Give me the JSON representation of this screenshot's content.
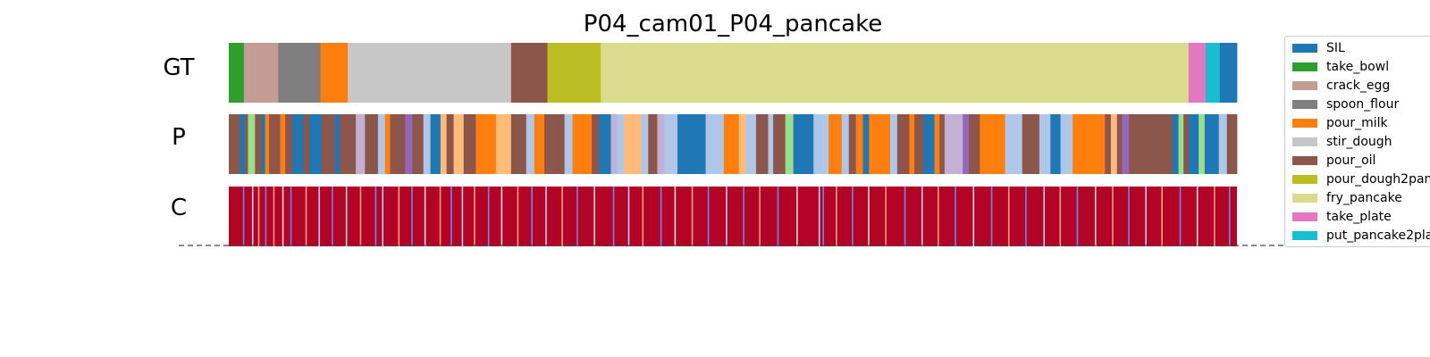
{
  "chart_data": {
    "type": "heatmap",
    "title": "P04_cam01_P04_pancake",
    "rows": [
      "GT",
      "P",
      "C"
    ],
    "legend": {
      "placement": "right",
      "entries": [
        {
          "label": "SIL",
          "color": "#1f77b4"
        },
        {
          "label": "take_bowl",
          "color": "#2ca02c"
        },
        {
          "label": "crack_egg",
          "color": "#c49c94"
        },
        {
          "label": "spoon_flour",
          "color": "#7f7f7f"
        },
        {
          "label": "pour_milk",
          "color": "#ff7f0e"
        },
        {
          "label": "stir_dough",
          "color": "#c7c7c7"
        },
        {
          "label": "pour_oil",
          "color": "#8c564b"
        },
        {
          "label": "pour_dough2pan",
          "color": "#bcbd22"
        },
        {
          "label": "fry_pancake",
          "color": "#dbdb8d"
        },
        {
          "label": "take_plate",
          "color": "#e377c2"
        },
        {
          "label": "put_pancake2pla",
          "color": "#17becf"
        }
      ]
    },
    "gt_segments": [
      {
        "action": "take_bowl",
        "start": 0.0,
        "end": 1.5
      },
      {
        "action": "crack_egg",
        "start": 1.5,
        "end": 4.9
      },
      {
        "action": "spoon_flour",
        "start": 4.9,
        "end": 9.1
      },
      {
        "action": "pour_milk",
        "start": 9.1,
        "end": 11.8
      },
      {
        "action": "stir_dough",
        "start": 11.8,
        "end": 28.0
      },
      {
        "action": "pour_oil",
        "start": 28.0,
        "end": 31.6
      },
      {
        "action": "pour_dough2pan",
        "start": 31.6,
        "end": 36.9
      },
      {
        "action": "fry_pancake",
        "start": 36.9,
        "end": 95.2
      },
      {
        "action": "take_plate",
        "start": 95.2,
        "end": 96.9
      },
      {
        "action": "put_pancake2pla",
        "start": 96.9,
        "end": 98.3
      },
      {
        "action": "SIL",
        "start": 98.3,
        "end": 100.0
      }
    ],
    "p_segments": [
      {
        "color": "#8c564b",
        "start": 0.0,
        "end": 1.1
      },
      {
        "color": "#1f77b4",
        "start": 1.1,
        "end": 1.6
      },
      {
        "color": "#8c564b",
        "start": 1.6,
        "end": 1.9
      },
      {
        "color": "#98df8a",
        "start": 1.9,
        "end": 2.6
      },
      {
        "color": "#8c564b",
        "start": 2.6,
        "end": 3.2
      },
      {
        "color": "#1f77b4",
        "start": 3.2,
        "end": 3.6
      },
      {
        "color": "#ff7f0e",
        "start": 3.6,
        "end": 4.0
      },
      {
        "color": "#8c564b",
        "start": 4.0,
        "end": 5.1
      },
      {
        "color": "#ff7f0e",
        "start": 5.1,
        "end": 5.6
      },
      {
        "color": "#8c564b",
        "start": 5.6,
        "end": 6.3
      },
      {
        "color": "#1f77b4",
        "start": 6.3,
        "end": 7.4
      },
      {
        "color": "#8c564b",
        "start": 7.4,
        "end": 8.0
      },
      {
        "color": "#1f77b4",
        "start": 8.0,
        "end": 9.2
      },
      {
        "color": "#8c564b",
        "start": 9.2,
        "end": 10.5
      },
      {
        "color": "#1f77b4",
        "start": 10.5,
        "end": 11.0
      },
      {
        "color": "#8c564b",
        "start": 11.0,
        "end": 12.6
      },
      {
        "color": "#c5b0d5",
        "start": 12.6,
        "end": 13.5
      },
      {
        "color": "#8c564b",
        "start": 13.5,
        "end": 14.8
      },
      {
        "color": "#aec7e8",
        "start": 14.8,
        "end": 15.5
      },
      {
        "color": "#ff7f0e",
        "start": 15.5,
        "end": 16.0
      },
      {
        "color": "#8c564b",
        "start": 16.0,
        "end": 17.5
      },
      {
        "color": "#9467bd",
        "start": 17.5,
        "end": 18.2
      },
      {
        "color": "#8c564b",
        "start": 18.2,
        "end": 19.3
      },
      {
        "color": "#aec7e8",
        "start": 19.3,
        "end": 20.0
      },
      {
        "color": "#1f77b4",
        "start": 20.0,
        "end": 21.0
      },
      {
        "color": "#ffbb78",
        "start": 21.0,
        "end": 21.6
      },
      {
        "color": "#8c564b",
        "start": 21.6,
        "end": 22.3
      },
      {
        "color": "#ffbb78",
        "start": 22.3,
        "end": 23.3
      },
      {
        "color": "#8c564b",
        "start": 23.3,
        "end": 24.5
      },
      {
        "color": "#ff7f0e",
        "start": 24.5,
        "end": 26.5
      },
      {
        "color": "#ffbb78",
        "start": 26.5,
        "end": 28.0
      },
      {
        "color": "#8c564b",
        "start": 28.0,
        "end": 29.5
      },
      {
        "color": "#aec7e8",
        "start": 29.5,
        "end": 30.3
      },
      {
        "color": "#ff7f0e",
        "start": 30.3,
        "end": 31.3
      },
      {
        "color": "#8c564b",
        "start": 31.3,
        "end": 33.3
      },
      {
        "color": "#aec7e8",
        "start": 33.3,
        "end": 34.1
      },
      {
        "color": "#ff7f0e",
        "start": 34.1,
        "end": 36.0
      },
      {
        "color": "#8c564b",
        "start": 36.0,
        "end": 36.7
      },
      {
        "color": "#1f77b4",
        "start": 36.7,
        "end": 37.9
      },
      {
        "color": "#c5b0d5",
        "start": 37.9,
        "end": 38.5
      },
      {
        "color": "#aec7e8",
        "start": 38.5,
        "end": 39.2
      },
      {
        "color": "#ffbb78",
        "start": 39.2,
        "end": 40.9
      },
      {
        "color": "#aec7e8",
        "start": 40.9,
        "end": 41.6
      },
      {
        "color": "#8c564b",
        "start": 41.6,
        "end": 42.5
      },
      {
        "color": "#c5b0d5",
        "start": 42.5,
        "end": 43.2
      },
      {
        "color": "#aec7e8",
        "start": 43.2,
        "end": 44.5
      },
      {
        "color": "#1f77b4",
        "start": 44.5,
        "end": 47.3
      },
      {
        "color": "#aec7e8",
        "start": 47.3,
        "end": 49.1
      },
      {
        "color": "#ff7f0e",
        "start": 49.1,
        "end": 50.6
      },
      {
        "color": "#ffbb78",
        "start": 50.6,
        "end": 51.3
      },
      {
        "color": "#aec7e8",
        "start": 51.3,
        "end": 52.3
      },
      {
        "color": "#8c564b",
        "start": 52.3,
        "end": 53.5
      },
      {
        "color": "#aec7e8",
        "start": 53.5,
        "end": 54.0
      },
      {
        "color": "#8c564b",
        "start": 54.0,
        "end": 55.2
      },
      {
        "color": "#98df8a",
        "start": 55.2,
        "end": 56.0
      },
      {
        "color": "#1f77b4",
        "start": 56.0,
        "end": 58.0
      },
      {
        "color": "#aec7e8",
        "start": 58.0,
        "end": 59.5
      },
      {
        "color": "#ff7f0e",
        "start": 59.5,
        "end": 60.8
      },
      {
        "color": "#aec7e8",
        "start": 60.8,
        "end": 61.5
      },
      {
        "color": "#8c564b",
        "start": 61.5,
        "end": 62.2
      },
      {
        "color": "#ff7f0e",
        "start": 62.2,
        "end": 62.9
      },
      {
        "color": "#1f77b4",
        "start": 62.9,
        "end": 63.5
      },
      {
        "color": "#ff7f0e",
        "start": 63.5,
        "end": 65.6
      },
      {
        "color": "#aec7e8",
        "start": 65.6,
        "end": 66.3
      },
      {
        "color": "#8c564b",
        "start": 66.3,
        "end": 67.5
      },
      {
        "color": "#ff7f0e",
        "start": 67.5,
        "end": 68.0
      },
      {
        "color": "#8c564b",
        "start": 68.0,
        "end": 68.9
      },
      {
        "color": "#1f77b4",
        "start": 68.9,
        "end": 70.0
      },
      {
        "color": "#ff7f0e",
        "start": 70.0,
        "end": 70.5
      },
      {
        "color": "#8c564b",
        "start": 70.5,
        "end": 71.0
      },
      {
        "color": "#c5b0d5",
        "start": 71.0,
        "end": 72.8
      },
      {
        "color": "#9467bd",
        "start": 72.8,
        "end": 73.4
      },
      {
        "color": "#8c564b",
        "start": 73.4,
        "end": 74.5
      },
      {
        "color": "#ff7f0e",
        "start": 74.5,
        "end": 77.0
      },
      {
        "color": "#aec7e8",
        "start": 77.0,
        "end": 78.7
      },
      {
        "color": "#8c564b",
        "start": 78.7,
        "end": 80.4
      },
      {
        "color": "#aec7e8",
        "start": 80.4,
        "end": 81.5
      },
      {
        "color": "#1f77b4",
        "start": 81.5,
        "end": 82.5
      },
      {
        "color": "#aec7e8",
        "start": 82.5,
        "end": 83.7
      },
      {
        "color": "#ff7f0e",
        "start": 83.7,
        "end": 86.9
      },
      {
        "color": "#8c564b",
        "start": 86.9,
        "end": 87.5
      },
      {
        "color": "#ffbb78",
        "start": 87.5,
        "end": 88.1
      },
      {
        "color": "#8c564b",
        "start": 88.1,
        "end": 88.6
      },
      {
        "color": "#9467bd",
        "start": 88.6,
        "end": 89.3
      },
      {
        "color": "#8c564b",
        "start": 89.3,
        "end": 93.6
      },
      {
        "color": "#1f77b4",
        "start": 93.6,
        "end": 94.2
      },
      {
        "color": "#98df8a",
        "start": 94.2,
        "end": 94.7
      },
      {
        "color": "#8c564b",
        "start": 94.7,
        "end": 95.2
      },
      {
        "color": "#1f77b4",
        "start": 95.2,
        "end": 96.2
      },
      {
        "color": "#98df8a",
        "start": 96.2,
        "end": 96.8
      },
      {
        "color": "#1f77b4",
        "start": 96.8,
        "end": 98.2
      },
      {
        "color": "#aec7e8",
        "start": 98.2,
        "end": 99.0
      },
      {
        "color": "#8c564b",
        "start": 99.0,
        "end": 100.0
      }
    ],
    "c_base_color": "#b40426",
    "c_marks": [
      {
        "pos": 1.4,
        "color": "#6788ee"
      },
      {
        "pos": 2.3,
        "color": "#b8cff8"
      },
      {
        "pos": 2.9,
        "color": "#f6a385"
      },
      {
        "pos": 3.6,
        "color": "#6788ee"
      },
      {
        "pos": 4.4,
        "color": "#f4987a"
      },
      {
        "pos": 5.3,
        "color": "#dddcdc"
      },
      {
        "pos": 6.1,
        "color": "#6788ee"
      },
      {
        "pos": 7.6,
        "color": "#f6a385"
      },
      {
        "pos": 8.9,
        "color": "#b8cff8"
      },
      {
        "pos": 10.2,
        "color": "#6788ee"
      },
      {
        "pos": 11.6,
        "color": "#dddcdc"
      },
      {
        "pos": 13.0,
        "color": "#f4987a"
      },
      {
        "pos": 14.5,
        "color": "#6788ee"
      },
      {
        "pos": 15.2,
        "color": "#b8cff8"
      },
      {
        "pos": 16.8,
        "color": "#f6a385"
      },
      {
        "pos": 18.1,
        "color": "#6788ee"
      },
      {
        "pos": 19.4,
        "color": "#dddcdc"
      },
      {
        "pos": 20.9,
        "color": "#f4987a"
      },
      {
        "pos": 22.0,
        "color": "#6788ee"
      },
      {
        "pos": 23.1,
        "color": "#b8cff8"
      },
      {
        "pos": 24.3,
        "color": "#f6a385"
      },
      {
        "pos": 25.7,
        "color": "#6788ee"
      },
      {
        "pos": 27.0,
        "color": "#dddcdc"
      },
      {
        "pos": 28.6,
        "color": "#f4987a"
      },
      {
        "pos": 30.0,
        "color": "#6788ee"
      },
      {
        "pos": 31.4,
        "color": "#b8cff8"
      },
      {
        "pos": 33.0,
        "color": "#f6a385"
      },
      {
        "pos": 34.5,
        "color": "#6788ee"
      },
      {
        "pos": 36.2,
        "color": "#dddcdc"
      },
      {
        "pos": 38.1,
        "color": "#6788ee"
      },
      {
        "pos": 39.6,
        "color": "#b8cff8"
      },
      {
        "pos": 41.0,
        "color": "#f4987a"
      },
      {
        "pos": 42.8,
        "color": "#6788ee"
      },
      {
        "pos": 44.2,
        "color": "#dddcdc"
      },
      {
        "pos": 45.9,
        "color": "#f6a385"
      },
      {
        "pos": 47.5,
        "color": "#6788ee"
      },
      {
        "pos": 49.3,
        "color": "#b8cff8"
      },
      {
        "pos": 51.0,
        "color": "#6788ee"
      },
      {
        "pos": 52.6,
        "color": "#f4987a"
      },
      {
        "pos": 54.4,
        "color": "#6788ee"
      },
      {
        "pos": 56.3,
        "color": "#dddcdc"
      },
      {
        "pos": 58.5,
        "color": "#b8cff8"
      },
      {
        "pos": 58.9,
        "color": "#6788ee"
      },
      {
        "pos": 60.2,
        "color": "#f6a385"
      },
      {
        "pos": 61.8,
        "color": "#6788ee"
      },
      {
        "pos": 63.4,
        "color": "#dddcdc"
      },
      {
        "pos": 65.1,
        "color": "#f4987a"
      },
      {
        "pos": 67.0,
        "color": "#6788ee"
      },
      {
        "pos": 68.7,
        "color": "#b8cff8"
      },
      {
        "pos": 70.3,
        "color": "#f6a385"
      },
      {
        "pos": 72.0,
        "color": "#6788ee"
      },
      {
        "pos": 73.8,
        "color": "#dddcdc"
      },
      {
        "pos": 75.6,
        "color": "#6788ee"
      },
      {
        "pos": 77.3,
        "color": "#f4987a"
      },
      {
        "pos": 79.0,
        "color": "#6788ee"
      },
      {
        "pos": 80.8,
        "color": "#b8cff8"
      },
      {
        "pos": 82.4,
        "color": "#f6a385"
      },
      {
        "pos": 84.1,
        "color": "#6788ee"
      },
      {
        "pos": 85.9,
        "color": "#dddcdc"
      },
      {
        "pos": 87.6,
        "color": "#f4987a"
      },
      {
        "pos": 89.2,
        "color": "#6788ee"
      },
      {
        "pos": 90.9,
        "color": "#b8cff8"
      },
      {
        "pos": 92.5,
        "color": "#f6a385"
      },
      {
        "pos": 94.3,
        "color": "#6788ee"
      },
      {
        "pos": 96.0,
        "color": "#dddcdc"
      },
      {
        "pos": 97.7,
        "color": "#f4987a"
      },
      {
        "pos": 99.2,
        "color": "#6788ee"
      }
    ],
    "baseline": "dashed"
  }
}
